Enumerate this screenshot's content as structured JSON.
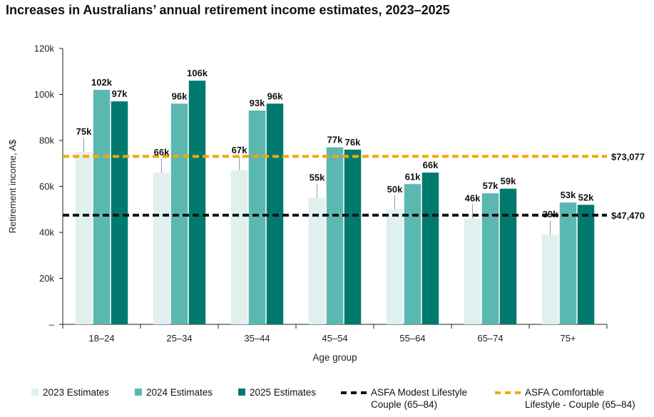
{
  "title": "Increases in Australians’ annual retirement income estimates, 2023–2025",
  "chart_data": {
    "type": "bar",
    "xlabel": "Age group",
    "ylabel": "Retirement income, A$",
    "ylim": [
      0,
      120000
    ],
    "yticks": [
      {
        "value": 0,
        "label": "–"
      },
      {
        "value": 20000,
        "label": "20k"
      },
      {
        "value": 40000,
        "label": "40k"
      },
      {
        "value": 60000,
        "label": "60k"
      },
      {
        "value": 80000,
        "label": "80k"
      },
      {
        "value": 100000,
        "label": "100k"
      },
      {
        "value": 120000,
        "label": "120k"
      }
    ],
    "categories": [
      "18–24",
      "25–34",
      "35–44",
      "45–54",
      "55–64",
      "65–74",
      "75+"
    ],
    "series": [
      {
        "name": "2023 Estimates",
        "color": "#dff0ef",
        "values": [
          75000,
          66000,
          67000,
          55000,
          50000,
          46000,
          39000
        ],
        "labels": [
          "75k",
          "66k",
          "67k",
          "55k",
          "50k",
          "46k",
          "39k"
        ]
      },
      {
        "name": "2024 Estimates",
        "color": "#5bb8b0",
        "values": [
          102000,
          96000,
          93000,
          77000,
          61000,
          57000,
          53000
        ],
        "labels": [
          "102k",
          "96k",
          "93k",
          "77k",
          "61k",
          "57k",
          "53k"
        ]
      },
      {
        "name": "2025 Estimates",
        "color": "#007a6e",
        "values": [
          97000,
          106000,
          96000,
          76000,
          66000,
          59000,
          52000
        ],
        "labels": [
          "97k",
          "106k",
          "96k",
          "76k",
          "66k",
          "59k",
          "52k"
        ]
      }
    ],
    "reference_lines": [
      {
        "name": "ASFA Modest Lifestyle\nCouple (65–84)",
        "value": 47470,
        "label": "$47,470",
        "color": "#111111",
        "style": "dashed"
      },
      {
        "name": "ASFA Comfortable\nLifestyle - Couple (65–84)",
        "value": 73077,
        "label": "$73,077",
        "color": "#f2a900",
        "style": "dashed"
      }
    ],
    "legend": "bottom",
    "grid": false
  }
}
